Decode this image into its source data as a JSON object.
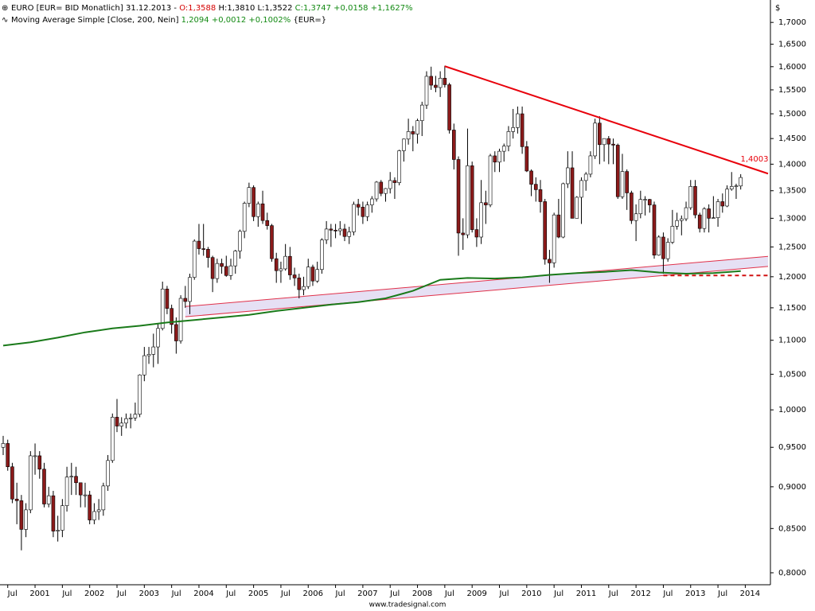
{
  "chart_data": {
    "type": "candlestick",
    "header": {
      "line1": [
        "EURO [EUR= BID Monatlich] 31.12.2013 -",
        "O:1,3588",
        "H:1,3810 L:1,3522",
        "C:1,3747 +0,0158 +1,1627%"
      ],
      "line2": [
        "Moving Average Simple [Close, 200, Nein]",
        "1,2094 +0,0012 +0,1002%",
        "{EUR=}"
      ]
    },
    "y_unit": "$",
    "footer": "www.tradesignal.com",
    "log": true,
    "up_color": "#ffffff",
    "down_color": "#8b1a1a",
    "xlim": [
      "2000-06",
      "2014-06"
    ],
    "ylim": [
      0.787,
      1.753
    ],
    "yticks": [
      {
        "value": 0.8,
        "label": "0,8000"
      },
      {
        "value": 0.85,
        "label": "0,8500"
      },
      {
        "value": 0.9,
        "label": "0,9000"
      },
      {
        "value": 0.95,
        "label": "0,9500"
      },
      {
        "value": 1.0,
        "label": "1,0000"
      },
      {
        "value": 1.05,
        "label": "1,0500"
      },
      {
        "value": 1.1,
        "label": "1,1000"
      },
      {
        "value": 1.15,
        "label": "1,1500"
      },
      {
        "value": 1.2,
        "label": "1,2000"
      },
      {
        "value": 1.25,
        "label": "1,2500"
      },
      {
        "value": 1.3,
        "label": "1,3000"
      },
      {
        "value": 1.35,
        "label": "1,3500"
      },
      {
        "value": 1.4,
        "label": "1,4000"
      },
      {
        "value": 1.45,
        "label": "1,4500"
      },
      {
        "value": 1.5,
        "label": "1,5000"
      },
      {
        "value": 1.55,
        "label": "1,5500"
      },
      {
        "value": 1.6,
        "label": "1,6000"
      },
      {
        "value": 1.65,
        "label": "1,6500"
      },
      {
        "value": 1.7,
        "label": "1,7000"
      }
    ],
    "xticks": [
      {
        "value": "2000-07",
        "label": "Jul"
      },
      {
        "value": "2001-01",
        "label": "2001"
      },
      {
        "value": "2001-07",
        "label": "Jul"
      },
      {
        "value": "2002-01",
        "label": "2002"
      },
      {
        "value": "2002-07",
        "label": "Jul"
      },
      {
        "value": "2003-01",
        "label": "2003"
      },
      {
        "value": "2003-07",
        "label": "Jul"
      },
      {
        "value": "2004-01",
        "label": "2004"
      },
      {
        "value": "2004-07",
        "label": "Jul"
      },
      {
        "value": "2005-01",
        "label": "2005"
      },
      {
        "value": "2005-07",
        "label": "Jul"
      },
      {
        "value": "2006-01",
        "label": "2006"
      },
      {
        "value": "2006-07",
        "label": "Jul"
      },
      {
        "value": "2007-01",
        "label": "2007"
      },
      {
        "value": "2007-07",
        "label": "Jul"
      },
      {
        "value": "2008-01",
        "label": "2008"
      },
      {
        "value": "2008-07",
        "label": "Jul"
      },
      {
        "value": "2009-01",
        "label": "2009"
      },
      {
        "value": "2009-07",
        "label": "Jul"
      },
      {
        "value": "2010-01",
        "label": "2010"
      },
      {
        "value": "2010-07",
        "label": "Jul"
      },
      {
        "value": "2011-01",
        "label": "2011"
      },
      {
        "value": "2011-07",
        "label": "Jul"
      },
      {
        "value": "2012-01",
        "label": "2012"
      },
      {
        "value": "2012-07",
        "label": "Jul"
      },
      {
        "value": "2013-01",
        "label": "2013"
      },
      {
        "value": "2013-07",
        "label": "Jul"
      },
      {
        "value": "2014-01",
        "label": "2014"
      }
    ],
    "x": [
      "2000-06",
      "2000-07",
      "2000-08",
      "2000-09",
      "2000-10",
      "2000-11",
      "2000-12",
      "2001-01",
      "2001-02",
      "2001-03",
      "2001-04",
      "2001-05",
      "2001-06",
      "2001-07",
      "2001-08",
      "2001-09",
      "2001-10",
      "2001-11",
      "2001-12",
      "2002-01",
      "2002-02",
      "2002-03",
      "2002-04",
      "2002-05",
      "2002-06",
      "2002-07",
      "2002-08",
      "2002-09",
      "2002-10",
      "2002-11",
      "2002-12",
      "2003-01",
      "2003-02",
      "2003-03",
      "2003-04",
      "2003-05",
      "2003-06",
      "2003-07",
      "2003-08",
      "2003-09",
      "2003-10",
      "2003-11",
      "2003-12",
      "2004-01",
      "2004-02",
      "2004-03",
      "2004-04",
      "2004-05",
      "2004-06",
      "2004-07",
      "2004-08",
      "2004-09",
      "2004-10",
      "2004-11",
      "2004-12",
      "2005-01",
      "2005-02",
      "2005-03",
      "2005-04",
      "2005-05",
      "2005-06",
      "2005-07",
      "2005-08",
      "2005-09",
      "2005-10",
      "2005-11",
      "2005-12",
      "2006-01",
      "2006-02",
      "2006-03",
      "2006-04",
      "2006-05",
      "2006-06",
      "2006-07",
      "2006-08",
      "2006-09",
      "2006-10",
      "2006-11",
      "2006-12",
      "2007-01",
      "2007-02",
      "2007-03",
      "2007-04",
      "2007-05",
      "2007-06",
      "2007-07",
      "2007-08",
      "2007-09",
      "2007-10",
      "2007-11",
      "2007-12",
      "2008-01",
      "2008-02",
      "2008-03",
      "2008-04",
      "2008-05",
      "2008-06",
      "2008-07",
      "2008-08",
      "2008-09",
      "2008-10",
      "2008-11",
      "2008-12",
      "2009-01",
      "2009-02",
      "2009-03",
      "2009-04",
      "2009-05",
      "2009-06",
      "2009-07",
      "2009-08",
      "2009-09",
      "2009-10",
      "2009-11",
      "2009-12",
      "2010-01",
      "2010-02",
      "2010-03",
      "2010-04",
      "2010-05",
      "2010-06",
      "2010-07",
      "2010-08",
      "2010-09",
      "2010-10",
      "2010-11",
      "2010-12",
      "2011-01",
      "2011-02",
      "2011-03",
      "2011-04",
      "2011-05",
      "2011-06",
      "2011-07",
      "2011-08",
      "2011-09",
      "2011-10",
      "2011-11",
      "2011-12",
      "2012-01",
      "2012-02",
      "2012-03",
      "2012-04",
      "2012-05",
      "2012-06",
      "2012-07",
      "2012-08",
      "2012-09",
      "2012-10",
      "2012-11",
      "2012-12",
      "2013-01",
      "2013-02",
      "2013-03",
      "2013-04",
      "2013-05",
      "2013-06",
      "2013-07",
      "2013-08",
      "2013-09",
      "2013-10",
      "2013-11",
      "2013-12"
    ],
    "open": [
      0.95,
      0.955,
      0.925,
      0.885,
      0.883,
      0.849,
      0.872,
      0.939,
      0.939,
      0.922,
      0.879,
      0.889,
      0.847,
      0.848,
      0.877,
      0.912,
      0.913,
      0.905,
      0.89,
      0.89,
      0.86,
      0.87,
      0.872,
      0.901,
      0.933,
      0.99,
      0.978,
      0.982,
      0.988,
      0.989,
      0.994,
      1.049,
      1.077,
      1.079,
      1.09,
      1.118,
      1.18,
      1.149,
      1.124,
      1.099,
      1.165,
      1.16,
      1.199,
      1.26,
      1.247,
      1.246,
      1.232,
      1.197,
      1.222,
      1.217,
      1.202,
      1.218,
      1.243,
      1.277,
      1.327,
      1.356,
      1.303,
      1.326,
      1.296,
      1.287,
      1.23,
      1.21,
      1.213,
      1.234,
      1.203,
      1.198,
      1.179,
      1.184,
      1.216,
      1.193,
      1.212,
      1.262,
      1.281,
      1.279,
      1.278,
      1.281,
      1.268,
      1.276,
      1.325,
      1.32,
      1.303,
      1.324,
      1.335,
      1.366,
      1.345,
      1.354,
      1.369,
      1.365,
      1.426,
      1.449,
      1.464,
      1.459,
      1.486,
      1.518,
      1.579,
      1.56,
      1.555,
      1.575,
      1.561,
      1.467,
      1.409,
      1.274,
      1.271,
      1.397,
      1.28,
      1.267,
      1.328,
      1.324,
      1.416,
      1.404,
      1.425,
      1.435,
      1.464,
      1.472,
      1.5,
      1.434,
      1.387,
      1.362,
      1.352,
      1.33,
      1.229,
      1.223,
      1.306,
      1.267,
      1.363,
      1.393,
      1.3,
      1.338,
      1.369,
      1.381,
      1.416,
      1.481,
      1.438,
      1.45,
      1.439,
      1.437,
      1.339,
      1.386,
      1.346,
      1.296,
      1.308,
      1.334,
      1.334,
      1.324,
      1.236,
      1.267,
      1.23,
      1.258,
      1.286,
      1.296,
      1.299,
      1.319,
      1.358,
      1.306,
      1.282,
      1.317,
      1.3,
      1.301,
      1.33,
      1.322,
      1.353,
      1.358,
      1.3588
    ],
    "high": [
      0.965,
      0.96,
      0.93,
      0.905,
      0.89,
      0.88,
      0.945,
      0.955,
      0.945,
      0.93,
      0.9,
      0.895,
      0.865,
      0.885,
      0.925,
      0.93,
      0.925,
      0.905,
      0.905,
      0.895,
      0.88,
      0.885,
      0.905,
      0.94,
      0.995,
      1.015,
      0.99,
      0.995,
      0.995,
      1.01,
      1.05,
      1.09,
      1.09,
      1.11,
      1.125,
      1.192,
      1.185,
      1.155,
      1.135,
      1.17,
      1.185,
      1.205,
      1.263,
      1.29,
      1.29,
      1.25,
      1.235,
      1.23,
      1.23,
      1.235,
      1.23,
      1.245,
      1.28,
      1.33,
      1.365,
      1.36,
      1.33,
      1.35,
      1.31,
      1.29,
      1.24,
      1.225,
      1.255,
      1.25,
      1.215,
      1.205,
      1.2,
      1.23,
      1.22,
      1.225,
      1.265,
      1.295,
      1.29,
      1.29,
      1.295,
      1.29,
      1.285,
      1.33,
      1.335,
      1.33,
      1.33,
      1.34,
      1.368,
      1.37,
      1.355,
      1.385,
      1.375,
      1.428,
      1.45,
      1.49,
      1.475,
      1.49,
      1.525,
      1.59,
      1.6,
      1.58,
      1.59,
      1.602,
      1.565,
      1.48,
      1.415,
      1.3,
      1.47,
      1.405,
      1.3,
      1.37,
      1.35,
      1.42,
      1.425,
      1.43,
      1.44,
      1.475,
      1.51,
      1.515,
      1.515,
      1.445,
      1.39,
      1.375,
      1.37,
      1.335,
      1.245,
      1.31,
      1.335,
      1.365,
      1.425,
      1.425,
      1.34,
      1.375,
      1.385,
      1.425,
      1.49,
      1.495,
      1.45,
      1.455,
      1.45,
      1.44,
      1.42,
      1.39,
      1.35,
      1.325,
      1.35,
      1.34,
      1.335,
      1.33,
      1.27,
      1.275,
      1.265,
      1.315,
      1.31,
      1.305,
      1.33,
      1.37,
      1.37,
      1.31,
      1.32,
      1.325,
      1.34,
      1.335,
      1.345,
      1.36,
      1.385,
      1.363,
      1.381
    ],
    "low": [
      0.94,
      0.92,
      0.88,
      0.855,
      0.825,
      0.84,
      0.868,
      0.915,
      0.91,
      0.875,
      0.875,
      0.84,
      0.835,
      0.84,
      0.87,
      0.89,
      0.89,
      0.875,
      0.875,
      0.855,
      0.855,
      0.86,
      0.865,
      0.895,
      0.93,
      0.97,
      0.965,
      0.975,
      0.975,
      0.985,
      0.99,
      1.04,
      1.065,
      1.06,
      1.065,
      1.115,
      1.14,
      1.11,
      1.08,
      1.095,
      1.15,
      1.14,
      1.195,
      1.237,
      1.235,
      1.215,
      1.175,
      1.19,
      1.205,
      1.2,
      1.195,
      1.205,
      1.23,
      1.265,
      1.32,
      1.295,
      1.285,
      1.29,
      1.28,
      1.225,
      1.19,
      1.19,
      1.21,
      1.195,
      1.185,
      1.165,
      1.17,
      1.18,
      1.185,
      1.19,
      1.205,
      1.255,
      1.25,
      1.265,
      1.27,
      1.26,
      1.255,
      1.27,
      1.305,
      1.29,
      1.295,
      1.31,
      1.33,
      1.34,
      1.33,
      1.345,
      1.335,
      1.36,
      1.405,
      1.438,
      1.425,
      1.44,
      1.455,
      1.51,
      1.55,
      1.545,
      1.535,
      1.555,
      1.46,
      1.39,
      1.235,
      1.245,
      1.265,
      1.275,
      1.25,
      1.255,
      1.29,
      1.32,
      1.385,
      1.385,
      1.405,
      1.425,
      1.45,
      1.46,
      1.42,
      1.385,
      1.34,
      1.33,
      1.31,
      1.22,
      1.19,
      1.215,
      1.265,
      1.265,
      1.355,
      1.3,
      1.3,
      1.29,
      1.35,
      1.375,
      1.41,
      1.4,
      1.405,
      1.4,
      1.4,
      1.335,
      1.335,
      1.315,
      1.29,
      1.26,
      1.3,
      1.305,
      1.31,
      1.23,
      1.235,
      1.205,
      1.225,
      1.255,
      1.28,
      1.27,
      1.295,
      1.315,
      1.3,
      1.275,
      1.275,
      1.275,
      1.3,
      1.285,
      1.31,
      1.32,
      1.35,
      1.335,
      1.3522
    ],
    "close": [
      0.955,
      0.925,
      0.885,
      0.883,
      0.849,
      0.872,
      0.939,
      0.939,
      0.922,
      0.879,
      0.889,
      0.847,
      0.848,
      0.877,
      0.912,
      0.913,
      0.905,
      0.89,
      0.89,
      0.86,
      0.87,
      0.872,
      0.901,
      0.933,
      0.99,
      0.978,
      0.982,
      0.988,
      0.989,
      0.994,
      1.049,
      1.077,
      1.079,
      1.09,
      1.118,
      1.18,
      1.149,
      1.124,
      1.099,
      1.165,
      1.16,
      1.199,
      1.26,
      1.247,
      1.246,
      1.232,
      1.197,
      1.222,
      1.217,
      1.202,
      1.218,
      1.243,
      1.277,
      1.327,
      1.356,
      1.303,
      1.326,
      1.296,
      1.287,
      1.23,
      1.21,
      1.213,
      1.234,
      1.203,
      1.198,
      1.179,
      1.184,
      1.216,
      1.193,
      1.212,
      1.262,
      1.281,
      1.279,
      1.278,
      1.281,
      1.268,
      1.276,
      1.325,
      1.32,
      1.303,
      1.324,
      1.335,
      1.366,
      1.345,
      1.354,
      1.369,
      1.365,
      1.426,
      1.449,
      1.464,
      1.459,
      1.486,
      1.518,
      1.579,
      1.56,
      1.555,
      1.575,
      1.561,
      1.467,
      1.409,
      1.274,
      1.271,
      1.397,
      1.28,
      1.267,
      1.328,
      1.324,
      1.416,
      1.404,
      1.425,
      1.435,
      1.464,
      1.472,
      1.5,
      1.434,
      1.387,
      1.362,
      1.352,
      1.33,
      1.229,
      1.223,
      1.306,
      1.267,
      1.363,
      1.393,
      1.3,
      1.338,
      1.369,
      1.381,
      1.416,
      1.481,
      1.438,
      1.45,
      1.439,
      1.437,
      1.339,
      1.386,
      1.346,
      1.296,
      1.308,
      1.334,
      1.334,
      1.324,
      1.236,
      1.267,
      1.23,
      1.258,
      1.286,
      1.296,
      1.299,
      1.319,
      1.358,
      1.306,
      1.282,
      1.317,
      1.3,
      1.301,
      1.33,
      1.322,
      1.353,
      1.358,
      1.359,
      1.3747
    ],
    "ma": {
      "color": "#1a7a1a",
      "x": [
        "2000-06",
        "2000-12",
        "2001-06",
        "2001-12",
        "2002-06",
        "2002-12",
        "2003-06",
        "2003-12",
        "2004-06",
        "2004-12",
        "2005-06",
        "2005-12",
        "2006-06",
        "2006-12",
        "2007-06",
        "2007-12",
        "2008-06",
        "2008-12",
        "2009-06",
        "2009-12",
        "2010-06",
        "2010-12",
        "2011-06",
        "2011-12",
        "2012-06",
        "2012-12",
        "2013-06",
        "2013-12"
      ],
      "values": [
        1.092,
        1.097,
        1.104,
        1.112,
        1.118,
        1.122,
        1.127,
        1.131,
        1.135,
        1.139,
        1.145,
        1.15,
        1.155,
        1.159,
        1.165,
        1.177,
        1.195,
        1.198,
        1.197,
        1.199,
        1.203,
        1.206,
        1.208,
        1.211,
        1.207,
        1.205,
        1.206,
        1.2094
      ]
    },
    "trendline": {
      "color": "#e8000b",
      "x": [
        "2008-07",
        "2014-06"
      ],
      "values": [
        1.601,
        1.382
      ],
      "label": "1,4003"
    },
    "channel": {
      "color": "#e0314a",
      "fill": "#e6e0f4",
      "x": [
        "2003-10",
        "2014-06"
      ],
      "upper": [
        1.152,
        1.234
      ],
      "lower": [
        1.136,
        1.217
      ]
    },
    "support": {
      "color": "#d01010",
      "x": [
        "2012-07",
        "2014-06"
      ],
      "values": [
        1.202,
        1.202
      ]
    }
  }
}
